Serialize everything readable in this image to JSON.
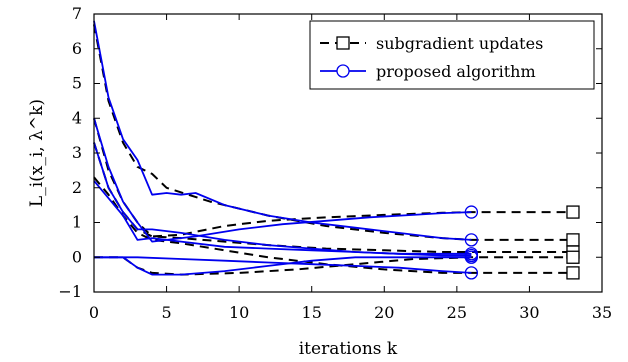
{
  "chart_data": {
    "type": "line",
    "xlabel": "iterations k",
    "ylabel": "L_i(x_i, λ^k)",
    "xlim": [
      0,
      35
    ],
    "ylim": [
      -1,
      7
    ],
    "xticks": [
      0,
      5,
      10,
      15,
      20,
      25,
      30,
      35
    ],
    "yticks": [
      -1,
      0,
      1,
      2,
      3,
      4,
      5,
      6,
      7
    ],
    "legend_position": "top-right",
    "legend": [
      "subgradient updates",
      "proposed algorithm"
    ],
    "series": [
      {
        "name": "subgradient updates",
        "group": "subgradient updates",
        "style": "dashed-black",
        "marker": "square",
        "curves": [
          {
            "x": [
              0,
              1,
              2,
              3,
              4,
              5,
              8,
              12,
              16,
              20,
              24,
              26,
              33
            ],
            "y": [
              6.7,
              4.5,
              3.3,
              2.6,
              2.4,
              2.0,
              1.6,
              1.2,
              0.9,
              0.7,
              0.55,
              0.5,
              0.5
            ]
          },
          {
            "x": [
              0,
              1,
              2,
              3,
              4,
              6,
              9,
              12,
              16,
              20,
              24,
              26,
              33
            ],
            "y": [
              4.0,
              2.5,
              1.6,
              1.0,
              0.6,
              0.65,
              0.9,
              1.05,
              1.15,
              1.22,
              1.28,
              1.3,
              1.3
            ]
          },
          {
            "x": [
              0,
              1,
              2,
              3,
              4,
              6,
              9,
              12,
              16,
              20,
              24,
              26,
              33
            ],
            "y": [
              3.3,
              2.0,
              1.3,
              0.8,
              0.6,
              0.55,
              0.45,
              0.35,
              0.25,
              0.2,
              0.15,
              0.15,
              0.15
            ]
          },
          {
            "x": [
              0,
              1,
              2,
              3,
              4,
              6,
              9,
              12,
              16,
              20,
              24,
              26,
              33
            ],
            "y": [
              2.3,
              1.8,
              1.2,
              0.7,
              0.5,
              0.4,
              0.2,
              0.0,
              -0.2,
              -0.35,
              -0.45,
              -0.45,
              -0.45
            ]
          },
          {
            "x": [
              0,
              2,
              3,
              4,
              6,
              10,
              14,
              18,
              22,
              26,
              33
            ],
            "y": [
              0.0,
              0.0,
              -0.3,
              -0.45,
              -0.5,
              -0.45,
              -0.35,
              -0.2,
              -0.05,
              0.0,
              0.0
            ]
          }
        ]
      },
      {
        "name": "proposed algorithm",
        "group": "proposed algorithm",
        "style": "solid-blue",
        "marker": "circle",
        "curves": [
          {
            "x": [
              0,
              1,
              2,
              3,
              4,
              5,
              6,
              7,
              9,
              12,
              15,
              18,
              21,
              24,
              26
            ],
            "y": [
              6.8,
              4.6,
              3.4,
              2.8,
              1.8,
              1.85,
              1.8,
              1.85,
              1.5,
              1.2,
              1.0,
              0.85,
              0.7,
              0.55,
              0.5
            ]
          },
          {
            "x": [
              0,
              1,
              2,
              3,
              4,
              5,
              7,
              10,
              13,
              16,
              19,
              22,
              24,
              26
            ],
            "y": [
              4.0,
              2.6,
              1.6,
              1.0,
              0.45,
              0.5,
              0.6,
              0.8,
              0.95,
              1.05,
              1.15,
              1.22,
              1.27,
              1.3
            ]
          },
          {
            "x": [
              0,
              1,
              2,
              3,
              4,
              6,
              9,
              12,
              15,
              18,
              21,
              24,
              26
            ],
            "y": [
              3.3,
              2.0,
              1.3,
              0.8,
              0.8,
              0.7,
              0.5,
              0.35,
              0.25,
              0.15,
              0.1,
              0.05,
              0.05
            ]
          },
          {
            "x": [
              0,
              1,
              2,
              3,
              4,
              6,
              9,
              12,
              15,
              18,
              21,
              24,
              26
            ],
            "y": [
              2.2,
              1.7,
              1.2,
              0.5,
              0.55,
              0.45,
              0.3,
              0.25,
              0.2,
              0.15,
              0.1,
              0.1,
              0.1
            ]
          },
          {
            "x": [
              0,
              2,
              3,
              4,
              6,
              9,
              12,
              15,
              18,
              21,
              24,
              26
            ],
            "y": [
              0.0,
              0.0,
              -0.3,
              -0.5,
              -0.5,
              -0.4,
              -0.25,
              -0.1,
              0.0,
              0.0,
              0.0,
              0.0
            ]
          },
          {
            "x": [
              0,
              3,
              6,
              9,
              12,
              15,
              18,
              21,
              24,
              26
            ],
            "y": [
              0.0,
              0.0,
              -0.05,
              -0.1,
              -0.15,
              -0.2,
              -0.25,
              -0.3,
              -0.4,
              -0.45
            ]
          }
        ]
      }
    ]
  }
}
